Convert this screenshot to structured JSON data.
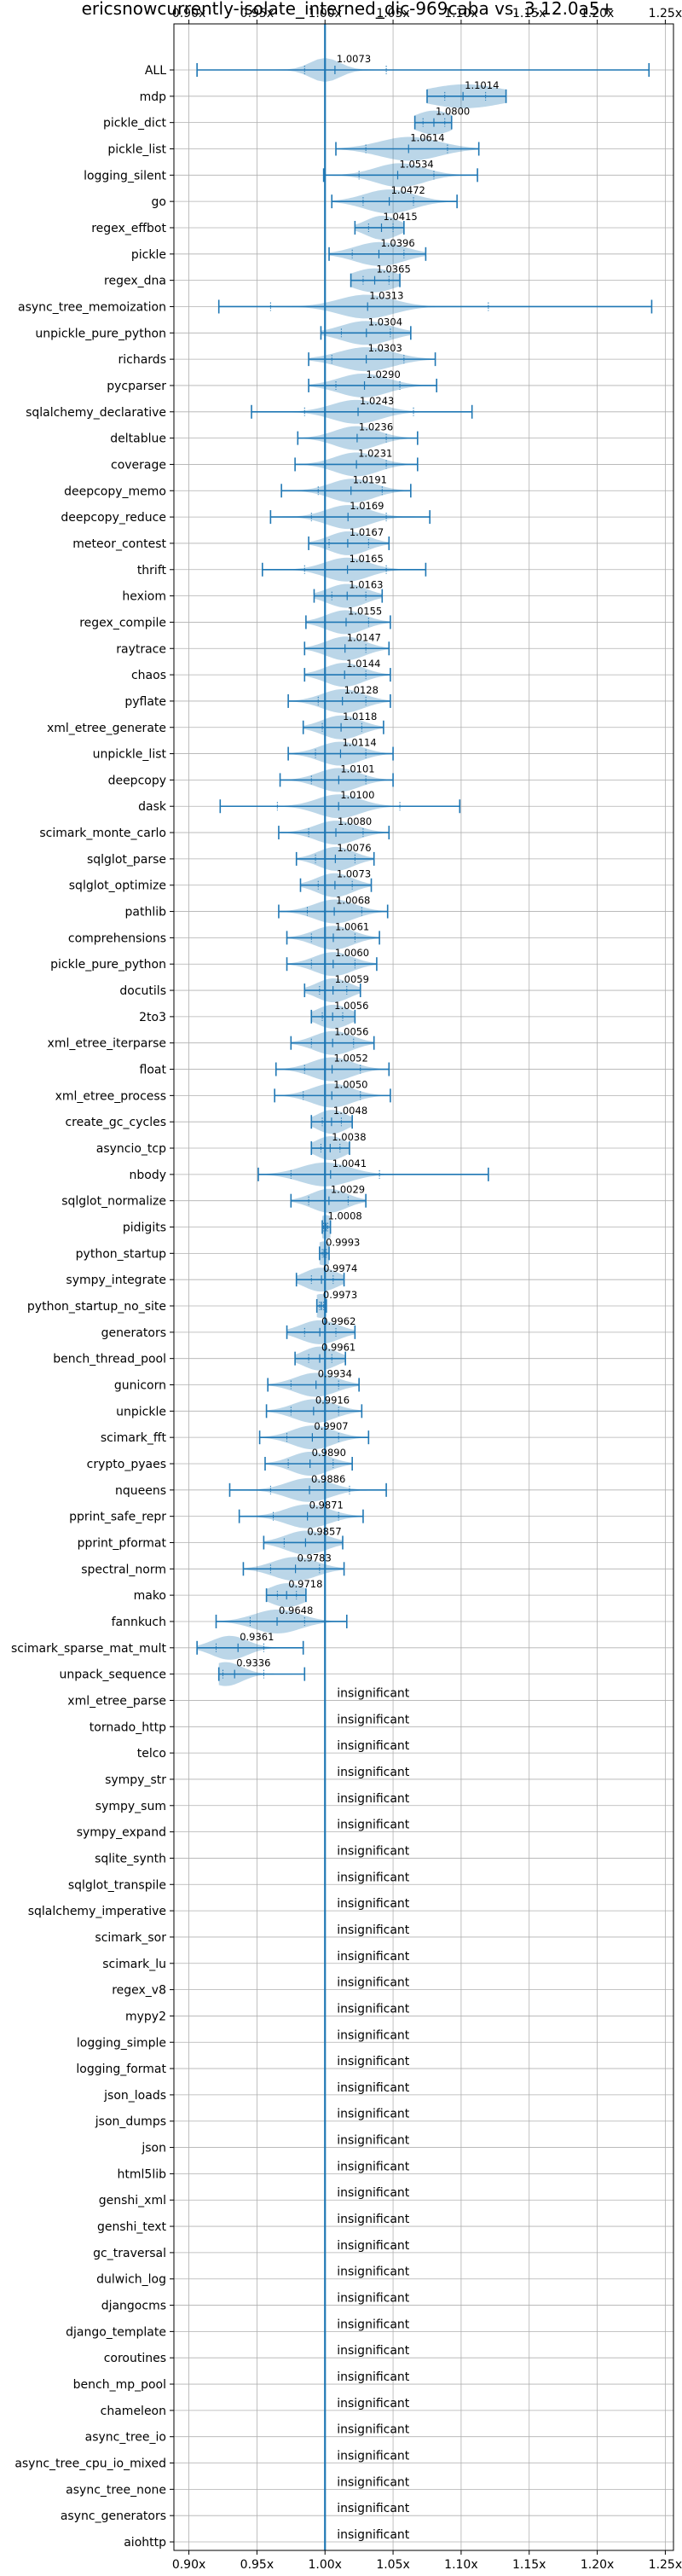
{
  "chart_data": {
    "type": "violin",
    "title": "ericsnowcurrently-isolate_interned_dic-969caba vs. 3.12.0a5+",
    "x_ticks": [
      "0.90x",
      "0.95x",
      "1.00x",
      "1.05x",
      "1.10x",
      "1.15x",
      "1.20x",
      "1.25x"
    ],
    "x_tick_values": [
      0.9,
      0.95,
      1.0,
      1.05,
      1.1,
      1.15,
      1.2,
      1.25
    ],
    "xlim": [
      0.889,
      1.256
    ],
    "reference_line": 1.0,
    "grid": true,
    "insignificant_label": "insignificant",
    "significant": [
      {
        "name": "ALL",
        "mean": 1.0073,
        "min": 0.906,
        "max": 1.238,
        "q1": 0.985,
        "q3": 1.045,
        "peak": 1.0,
        "width": 0.011
      },
      {
        "name": "mdp",
        "mean": 1.1014,
        "min": 1.075,
        "max": 1.133,
        "q1": 1.088,
        "q3": 1.118,
        "peak": 1.103,
        "width": 0.028
      },
      {
        "name": "pickle_dict",
        "mean": 1.08,
        "min": 1.066,
        "max": 1.093,
        "q1": 1.072,
        "q3": 1.088,
        "peak": 1.08,
        "width": 0.014
      },
      {
        "name": "pickle_list",
        "mean": 1.0614,
        "min": 1.008,
        "max": 1.113,
        "q1": 1.03,
        "q3": 1.09,
        "peak": 1.062,
        "width": 0.022
      },
      {
        "name": "logging_silent",
        "mean": 1.0534,
        "min": 0.999,
        "max": 1.112,
        "q1": 1.025,
        "q3": 1.08,
        "peak": 1.055,
        "width": 0.018
      },
      {
        "name": "go",
        "mean": 1.0472,
        "min": 1.005,
        "max": 1.097,
        "q1": 1.028,
        "q3": 1.065,
        "peak": 1.047,
        "width": 0.018
      },
      {
        "name": "regex_effbot",
        "mean": 1.0415,
        "min": 1.022,
        "max": 1.058,
        "q1": 1.032,
        "q3": 1.05,
        "peak": 1.042,
        "width": 0.012
      },
      {
        "name": "pickle",
        "mean": 1.0396,
        "min": 1.003,
        "max": 1.074,
        "q1": 1.02,
        "q3": 1.058,
        "peak": 1.04,
        "width": 0.018
      },
      {
        "name": "regex_dna",
        "mean": 1.0365,
        "min": 1.019,
        "max": 1.055,
        "q1": 1.028,
        "q3": 1.047,
        "peak": 1.036,
        "width": 0.016
      },
      {
        "name": "async_tree_memoization",
        "mean": 1.0313,
        "min": 0.922,
        "max": 1.24,
        "q1": 0.96,
        "q3": 1.12,
        "peak": 1.03,
        "width": 0.02
      },
      {
        "name": "unpickle_pure_python",
        "mean": 1.0304,
        "min": 0.997,
        "max": 1.063,
        "q1": 1.012,
        "q3": 1.048,
        "peak": 1.03,
        "width": 0.018
      },
      {
        "name": "richards",
        "mean": 1.0303,
        "min": 0.988,
        "max": 1.081,
        "q1": 1.005,
        "q3": 1.058,
        "peak": 1.03,
        "width": 0.02
      },
      {
        "name": "pycparser",
        "mean": 1.029,
        "min": 0.988,
        "max": 1.082,
        "q1": 1.008,
        "q3": 1.055,
        "peak": 1.028,
        "width": 0.018
      },
      {
        "name": "sqlalchemy_declarative",
        "mean": 1.0243,
        "min": 0.946,
        "max": 1.108,
        "q1": 0.985,
        "q3": 1.065,
        "peak": 1.023,
        "width": 0.018
      },
      {
        "name": "deltablue",
        "mean": 1.0236,
        "min": 0.98,
        "max": 1.068,
        "q1": 1.0,
        "q3": 1.045,
        "peak": 1.023,
        "width": 0.016
      },
      {
        "name": "coverage",
        "mean": 1.0231,
        "min": 0.978,
        "max": 1.068,
        "q1": 1.0,
        "q3": 1.045,
        "peak": 1.023,
        "width": 0.016
      },
      {
        "name": "deepcopy_memo",
        "mean": 1.0191,
        "min": 0.968,
        "max": 1.063,
        "q1": 0.995,
        "q3": 1.042,
        "peak": 1.02,
        "width": 0.016
      },
      {
        "name": "deepcopy_reduce",
        "mean": 1.0169,
        "min": 0.96,
        "max": 1.077,
        "q1": 0.99,
        "q3": 1.045,
        "peak": 1.017,
        "width": 0.016
      },
      {
        "name": "meteor_contest",
        "mean": 1.0167,
        "min": 0.988,
        "max": 1.047,
        "q1": 1.003,
        "q3": 1.032,
        "peak": 1.017,
        "width": 0.014
      },
      {
        "name": "thrift",
        "mean": 1.0165,
        "min": 0.954,
        "max": 1.074,
        "q1": 0.985,
        "q3": 1.045,
        "peak": 1.016,
        "width": 0.016
      },
      {
        "name": "hexiom",
        "mean": 1.0163,
        "min": 0.992,
        "max": 1.042,
        "q1": 1.005,
        "q3": 1.03,
        "peak": 1.016,
        "width": 0.014
      },
      {
        "name": "regex_compile",
        "mean": 1.0155,
        "min": 0.986,
        "max": 1.048,
        "q1": 1.0,
        "q3": 1.032,
        "peak": 1.015,
        "width": 0.014
      },
      {
        "name": "raytrace",
        "mean": 1.0147,
        "min": 0.985,
        "max": 1.047,
        "q1": 1.0,
        "q3": 1.03,
        "peak": 1.015,
        "width": 0.014
      },
      {
        "name": "chaos",
        "mean": 1.0144,
        "min": 0.985,
        "max": 1.048,
        "q1": 1.0,
        "q3": 1.03,
        "peak": 1.014,
        "width": 0.014
      },
      {
        "name": "pyflate",
        "mean": 1.0128,
        "min": 0.973,
        "max": 1.048,
        "q1": 0.995,
        "q3": 1.03,
        "peak": 1.013,
        "width": 0.015
      },
      {
        "name": "xml_etree_generate",
        "mean": 1.0118,
        "min": 0.984,
        "max": 1.043,
        "q1": 0.998,
        "q3": 1.027,
        "peak": 1.012,
        "width": 0.014
      },
      {
        "name": "unpickle_list",
        "mean": 1.0114,
        "min": 0.973,
        "max": 1.05,
        "q1": 0.993,
        "q3": 1.03,
        "peak": 1.011,
        "width": 0.015
      },
      {
        "name": "deepcopy",
        "mean": 1.0101,
        "min": 0.967,
        "max": 1.05,
        "q1": 0.99,
        "q3": 1.03,
        "peak": 1.01,
        "width": 0.015
      },
      {
        "name": "dask",
        "mean": 1.01,
        "min": 0.923,
        "max": 1.099,
        "q1": 0.965,
        "q3": 1.055,
        "peak": 1.01,
        "width": 0.016
      },
      {
        "name": "scimark_monte_carlo",
        "mean": 1.008,
        "min": 0.966,
        "max": 1.047,
        "q1": 0.988,
        "q3": 1.028,
        "peak": 1.008,
        "width": 0.015
      },
      {
        "name": "sqlglot_parse",
        "mean": 1.0076,
        "min": 0.979,
        "max": 1.036,
        "q1": 0.993,
        "q3": 1.022,
        "peak": 1.008,
        "width": 0.013
      },
      {
        "name": "sqlglot_optimize",
        "mean": 1.0073,
        "min": 0.982,
        "max": 1.034,
        "q1": 0.995,
        "q3": 1.02,
        "peak": 1.007,
        "width": 0.013
      },
      {
        "name": "pathlib",
        "mean": 1.0068,
        "min": 0.966,
        "max": 1.046,
        "q1": 0.987,
        "q3": 1.027,
        "peak": 1.007,
        "width": 0.015
      },
      {
        "name": "comprehensions",
        "mean": 1.0061,
        "min": 0.972,
        "max": 1.04,
        "q1": 0.99,
        "q3": 1.022,
        "peak": 1.006,
        "width": 0.014
      },
      {
        "name": "pickle_pure_python",
        "mean": 1.006,
        "min": 0.972,
        "max": 1.038,
        "q1": 0.99,
        "q3": 1.022,
        "peak": 1.006,
        "width": 0.014
      },
      {
        "name": "docutils",
        "mean": 1.0059,
        "min": 0.985,
        "max": 1.026,
        "q1": 0.996,
        "q3": 1.016,
        "peak": 1.006,
        "width": 0.012
      },
      {
        "name": "2to3",
        "mean": 1.0056,
        "min": 0.99,
        "max": 1.022,
        "q1": 0.998,
        "q3": 1.013,
        "peak": 1.006,
        "width": 0.012
      },
      {
        "name": "xml_etree_iterparse",
        "mean": 1.0056,
        "min": 0.975,
        "max": 1.036,
        "q1": 0.99,
        "q3": 1.021,
        "peak": 1.006,
        "width": 0.014
      },
      {
        "name": "float",
        "mean": 1.0052,
        "min": 0.964,
        "max": 1.047,
        "q1": 0.985,
        "q3": 1.026,
        "peak": 1.005,
        "width": 0.015
      },
      {
        "name": "xml_etree_process",
        "mean": 1.005,
        "min": 0.963,
        "max": 1.048,
        "q1": 0.984,
        "q3": 1.026,
        "peak": 1.005,
        "width": 0.015
      },
      {
        "name": "create_gc_cycles",
        "mean": 1.0048,
        "min": 0.99,
        "max": 1.02,
        "q1": 0.998,
        "q3": 1.012,
        "peak": 1.005,
        "width": 0.011
      },
      {
        "name": "asyncio_tcp",
        "mean": 1.0038,
        "min": 0.99,
        "max": 1.018,
        "q1": 0.997,
        "q3": 1.011,
        "peak": 1.004,
        "width": 0.011
      },
      {
        "name": "nbody",
        "mean": 1.0041,
        "min": 0.951,
        "max": 1.12,
        "q1": 0.975,
        "q3": 1.04,
        "peak": 1.0,
        "width": 0.018
      },
      {
        "name": "sqlglot_normalize",
        "mean": 1.0029,
        "min": 0.975,
        "max": 1.03,
        "q1": 0.988,
        "q3": 1.017,
        "peak": 1.003,
        "width": 0.013
      },
      {
        "name": "pidigits",
        "mean": 1.0008,
        "min": 0.998,
        "max": 1.004,
        "q1": 0.999,
        "q3": 1.002,
        "peak": 1.0008,
        "width": 0.007
      },
      {
        "name": "python_startup",
        "mean": 0.9993,
        "min": 0.996,
        "max": 1.003,
        "q1": 0.998,
        "q3": 1.001,
        "peak": 0.9993,
        "width": 0.008
      },
      {
        "name": "sympy_integrate",
        "mean": 0.9974,
        "min": 0.979,
        "max": 1.014,
        "q1": 0.99,
        "q3": 1.006,
        "peak": 0.997,
        "width": 0.012
      },
      {
        "name": "python_startup_no_site",
        "mean": 0.9973,
        "min": 0.994,
        "max": 1.001,
        "q1": 0.996,
        "q3": 0.999,
        "peak": 0.997,
        "width": 0.008
      },
      {
        "name": "generators",
        "mean": 0.9962,
        "min": 0.972,
        "max": 1.022,
        "q1": 0.985,
        "q3": 1.008,
        "peak": 0.996,
        "width": 0.014
      },
      {
        "name": "bench_thread_pool",
        "mean": 0.9961,
        "min": 0.978,
        "max": 1.015,
        "q1": 0.988,
        "q3": 1.005,
        "peak": 0.996,
        "width": 0.012
      },
      {
        "name": "gunicorn",
        "mean": 0.9934,
        "min": 0.958,
        "max": 1.025,
        "q1": 0.975,
        "q3": 1.01,
        "peak": 0.993,
        "width": 0.015
      },
      {
        "name": "unpickle",
        "mean": 0.9916,
        "min": 0.957,
        "max": 1.027,
        "q1": 0.975,
        "q3": 1.01,
        "peak": 0.992,
        "width": 0.015
      },
      {
        "name": "scimark_fft",
        "mean": 0.9907,
        "min": 0.952,
        "max": 1.032,
        "q1": 0.972,
        "q3": 1.01,
        "peak": 0.991,
        "width": 0.015
      },
      {
        "name": "crypto_pyaes",
        "mean": 0.989,
        "min": 0.956,
        "max": 1.02,
        "q1": 0.973,
        "q3": 1.006,
        "peak": 0.989,
        "width": 0.014
      },
      {
        "name": "nqueens",
        "mean": 0.9886,
        "min": 0.93,
        "max": 1.045,
        "q1": 0.96,
        "q3": 1.018,
        "peak": 0.988,
        "width": 0.016
      },
      {
        "name": "pprint_safe_repr",
        "mean": 0.9871,
        "min": 0.937,
        "max": 1.028,
        "q1": 0.962,
        "q3": 1.01,
        "peak": 0.987,
        "width": 0.016
      },
      {
        "name": "pprint_pformat",
        "mean": 0.9857,
        "min": 0.955,
        "max": 1.013,
        "q1": 0.97,
        "q3": 1.0,
        "peak": 0.986,
        "width": 0.015
      },
      {
        "name": "spectral_norm",
        "mean": 0.9783,
        "min": 0.94,
        "max": 1.014,
        "q1": 0.96,
        "q3": 0.996,
        "peak": 0.978,
        "width": 0.016
      },
      {
        "name": "mako",
        "mean": 0.9718,
        "min": 0.957,
        "max": 0.986,
        "q1": 0.965,
        "q3": 0.979,
        "peak": 0.972,
        "width": 0.013
      },
      {
        "name": "fannkuch",
        "mean": 0.9648,
        "min": 0.92,
        "max": 1.016,
        "q1": 0.945,
        "q3": 0.985,
        "peak": 0.965,
        "width": 0.017
      },
      {
        "name": "scimark_sparse_mat_mult",
        "mean": 0.9361,
        "min": 0.906,
        "max": 0.984,
        "q1": 0.92,
        "q3": 0.955,
        "peak": 0.93,
        "width": 0.013
      },
      {
        "name": "unpack_sequence",
        "mean": 0.9336,
        "min": 0.922,
        "max": 0.985,
        "q1": 0.925,
        "q3": 0.955,
        "peak": 0.927,
        "width": 0.012
      }
    ],
    "insignificant": [
      "xml_etree_parse",
      "tornado_http",
      "telco",
      "sympy_str",
      "sympy_sum",
      "sympy_expand",
      "sqlite_synth",
      "sqlglot_transpile",
      "sqlalchemy_imperative",
      "scimark_sor",
      "scimark_lu",
      "regex_v8",
      "mypy2",
      "logging_simple",
      "logging_format",
      "json_loads",
      "json_dumps",
      "json",
      "html5lib",
      "genshi_xml",
      "genshi_text",
      "gc_traversal",
      "dulwich_log",
      "djangocms",
      "django_template",
      "coroutines",
      "bench_mp_pool",
      "chameleon",
      "async_tree_io",
      "async_tree_cpu_io_mixed",
      "async_tree_none",
      "async_generators",
      "aiohttp"
    ],
    "colors": {
      "line": "#1f77b4",
      "fill": "#1f77b4",
      "grid": "#b0b0b0",
      "axis": "#000000"
    }
  }
}
